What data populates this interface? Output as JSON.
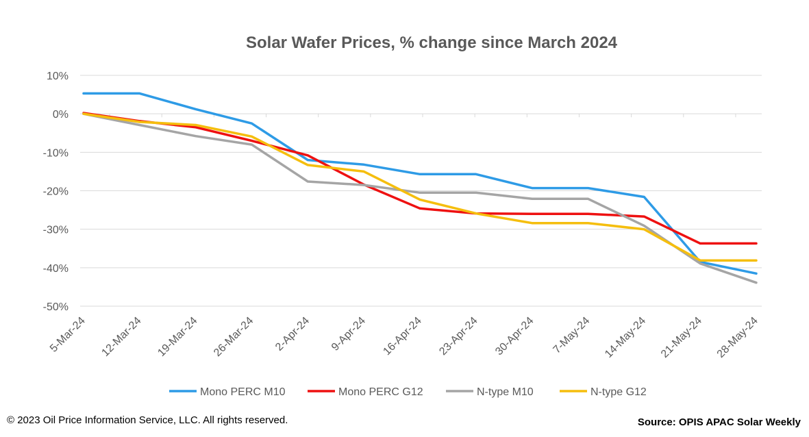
{
  "footer": {
    "copyright": "© 2023 Oil Price Information Service, LLC. All rights reserved.",
    "source": "Source: OPIS APAC Solar Weekly"
  },
  "chart_data": {
    "type": "line",
    "title": "Solar Wafer Prices, % change since March 2024",
    "xlabel": "",
    "ylabel": "",
    "categories": [
      "5-Mar-24",
      "12-Mar-24",
      "19-Mar-24",
      "26-Mar-24",
      "2-Apr-24",
      "9-Apr-24",
      "16-Apr-24",
      "23-Apr-24",
      "30-Apr-24",
      "7-May-24",
      "14-May-24",
      "21-May-24",
      "28-May-24"
    ],
    "ylim": [
      -50,
      10
    ],
    "yticks": [
      10,
      0,
      -10,
      -20,
      -30,
      -40,
      -50
    ],
    "ytick_labels": [
      "10%",
      "0%",
      "-10%",
      "-20%",
      "-30%",
      "-40%",
      "-50%"
    ],
    "grid": true,
    "legend_position": "bottom",
    "series": [
      {
        "name": "Mono PERC M10",
        "color": "#2E9BE6",
        "values": [
          5.3,
          5.3,
          1.2,
          -2.5,
          -12.0,
          -13.2,
          -15.7,
          -15.7,
          -19.3,
          -19.3,
          -21.6,
          -38.5,
          -41.5
        ]
      },
      {
        "name": "Mono PERC G12",
        "color": "#EE1111",
        "values": [
          0.2,
          -1.9,
          -3.5,
          -7.0,
          -10.8,
          -18.4,
          -24.6,
          -25.9,
          -26.0,
          -26.0,
          -26.7,
          -33.7,
          -33.7
        ]
      },
      {
        "name": "N-type M10",
        "color": "#A5A5A5",
        "values": [
          0,
          -2.9,
          -5.8,
          -8.0,
          -17.6,
          -18.5,
          -20.5,
          -20.5,
          -22.1,
          -22.1,
          -29.1,
          -38.9,
          -43.9
        ]
      },
      {
        "name": "N-type G12",
        "color": "#F5BE0E",
        "values": [
          0,
          -2.1,
          -2.9,
          -5.9,
          -13.3,
          -15.0,
          -22.3,
          -25.9,
          -28.4,
          -28.4,
          -30.0,
          -38.1,
          -38.1
        ]
      }
    ]
  }
}
